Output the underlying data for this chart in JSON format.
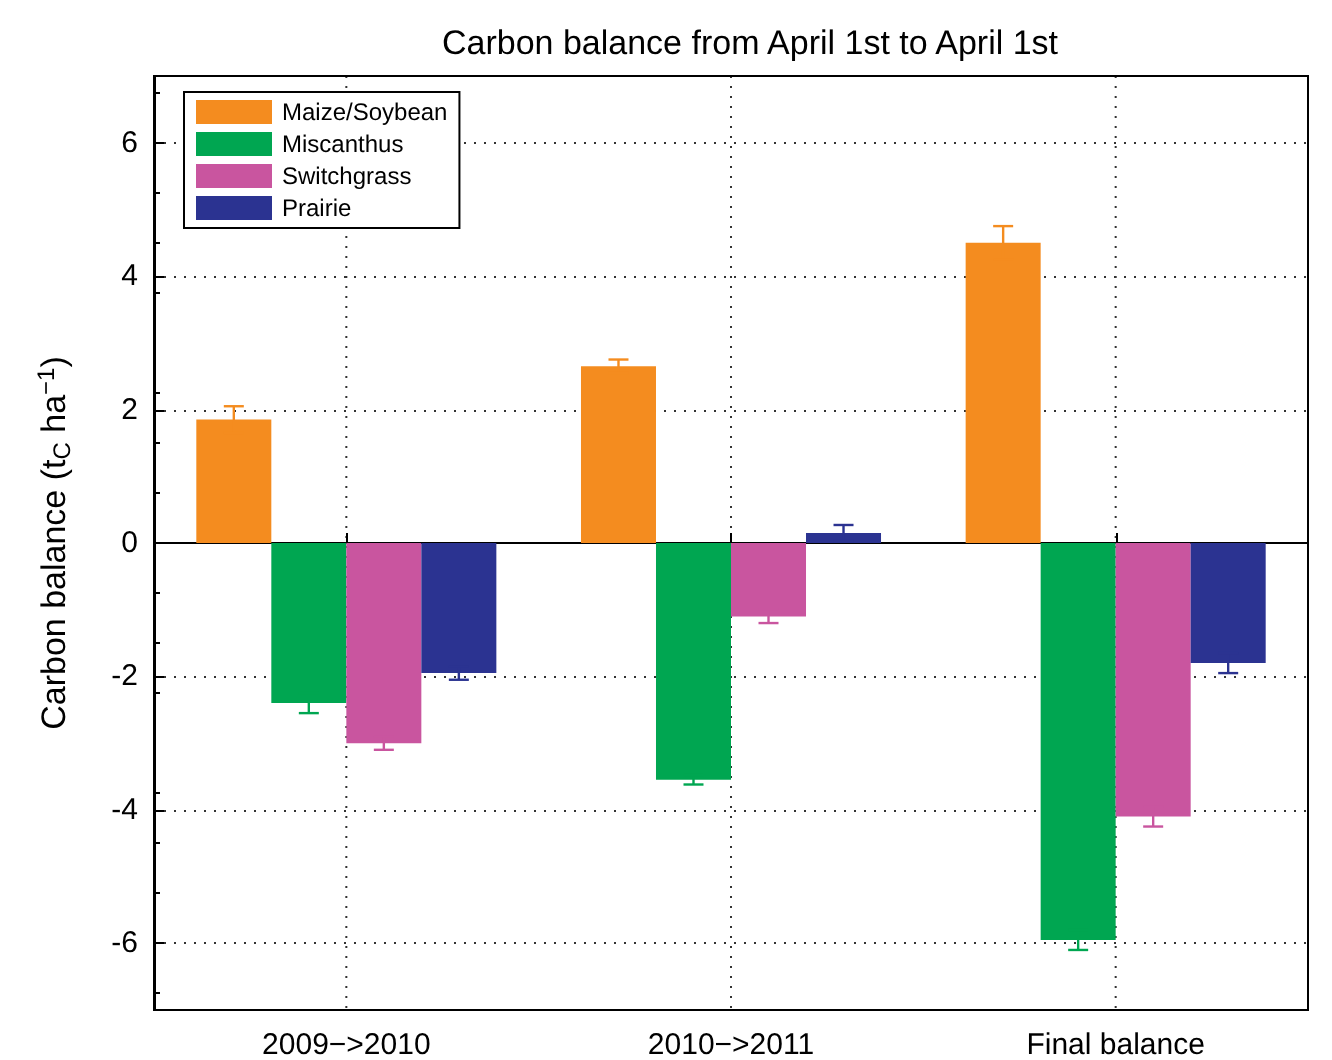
{
  "chart_data": {
    "type": "bar",
    "title": "Carbon balance from April 1st to April 1st",
    "ylabel": "Carbon balance (t$_{C}$ ha$^{−1}$)",
    "categories": [
      "2009−>2010",
      "2010−>2011",
      "Final balance"
    ],
    "series": [
      {
        "name": "Maize/Soybean",
        "color": "#f48c1f",
        "values": [
          1.85,
          2.65,
          4.5
        ],
        "errors": [
          0.2,
          0.1,
          0.25
        ]
      },
      {
        "name": "Miscanthus",
        "color": "#00a651",
        "values": [
          -2.4,
          -3.55,
          -5.95
        ],
        "errors": [
          0.15,
          0.07,
          0.15
        ]
      },
      {
        "name": "Switchgrass",
        "color": "#c9559f",
        "values": [
          -3.0,
          -1.1,
          -4.1
        ],
        "errors": [
          0.1,
          0.1,
          0.15
        ]
      },
      {
        "name": "Prairie",
        "color": "#2b3391",
        "values": [
          -1.95,
          0.15,
          -1.8
        ],
        "errors": [
          0.1,
          0.12,
          0.15
        ]
      }
    ],
    "ylim": [
      -7,
      7
    ],
    "yticks": [
      -6,
      -4,
      -2,
      0,
      2,
      4,
      6
    ],
    "grid": true,
    "legend": "top left"
  }
}
